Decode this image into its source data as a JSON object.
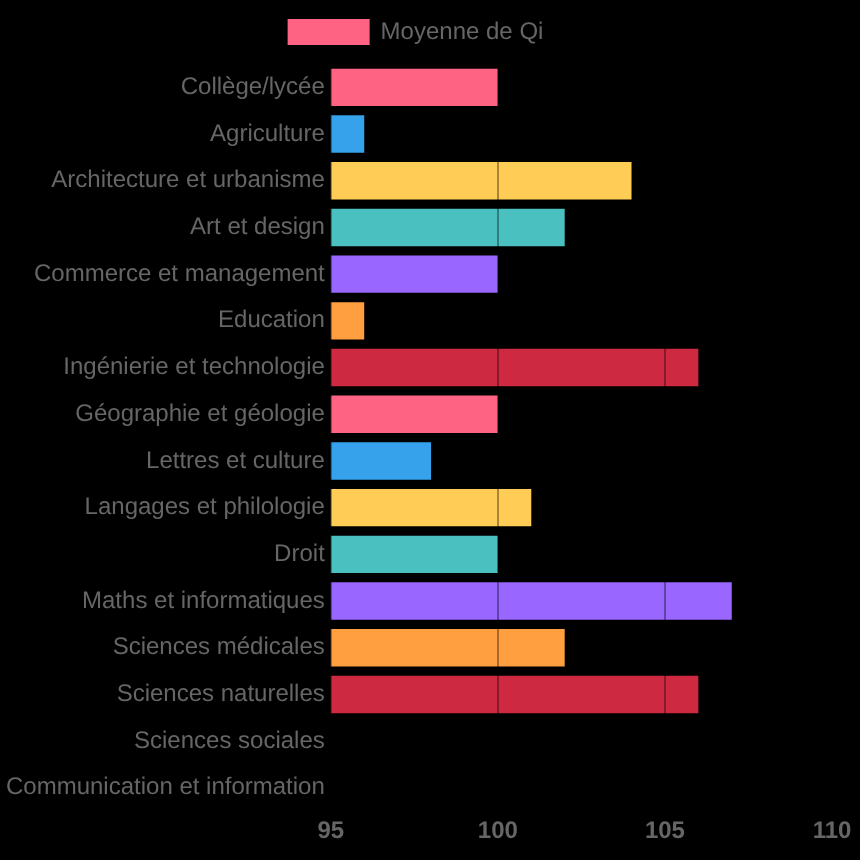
{
  "chart_data": {
    "type": "bar",
    "orientation": "horizontal",
    "categories": [
      "Collège/lycée",
      "Agriculture",
      "Architecture et urbanisme",
      "Art et design",
      "Commerce et management",
      "Education",
      "Ingénierie et technologie",
      "Géographie et géologie",
      "Lettres et culture",
      "Langages et philologie",
      "Droit",
      "Maths et informatiques",
      "Sciences médicales",
      "Sciences naturelles",
      "Sciences sociales",
      "Communication et information"
    ],
    "series": [
      {
        "name": "Moyenne de Qi",
        "color": "#ff6384",
        "values": [
          100,
          96,
          104,
          102,
          100,
          96,
          106,
          100,
          98,
          101,
          100,
          107,
          102,
          106,
          null,
          null
        ],
        "colors": [
          "#ff6384",
          "#36a2eb",
          "#ffcd56",
          "#4bc0c0",
          "#9966ff",
          "#ff9f40",
          "#cd2a42",
          "#ff6384",
          "#36a2eb",
          "#ffcd56",
          "#4bc0c0",
          "#9966ff",
          "#ff9f40",
          "#cd2a42",
          "#ffcd56",
          "#4bc0c0"
        ]
      }
    ],
    "xlim": [
      95,
      110
    ],
    "xticks": [
      95,
      100,
      105,
      110
    ],
    "grid": "x",
    "legend": "top"
  }
}
